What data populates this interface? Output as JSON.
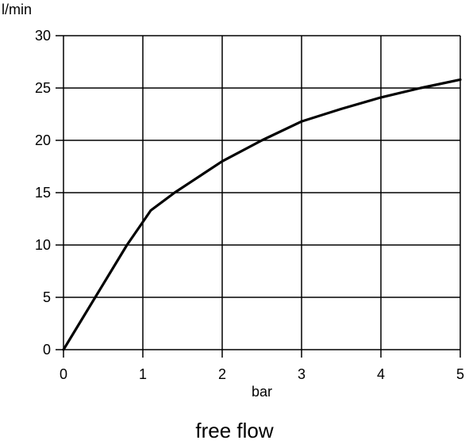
{
  "chart_data": {
    "type": "line",
    "title": "",
    "caption": "free flow",
    "xlabel": "bar",
    "ylabel": "l/min",
    "xlim": [
      0,
      5
    ],
    "ylim": [
      0,
      30
    ],
    "x_ticks": [
      0,
      1,
      2,
      3,
      4,
      5
    ],
    "y_ticks": [
      0,
      5,
      10,
      15,
      20,
      25,
      30
    ],
    "grid": true,
    "legend": "none",
    "series": [
      {
        "color": "#000000",
        "points": [
          [
            0,
            0
          ],
          [
            0.2,
            2.5
          ],
          [
            0.4,
            5
          ],
          [
            0.6,
            7.5
          ],
          [
            0.8,
            10
          ],
          [
            1.0,
            12.2
          ],
          [
            1.1,
            13.3
          ],
          [
            1.4,
            15
          ],
          [
            1.6,
            16
          ],
          [
            2.0,
            18
          ],
          [
            2.5,
            20
          ],
          [
            3.0,
            21.8
          ],
          [
            3.5,
            23
          ],
          [
            4.0,
            24.1
          ],
          [
            4.5,
            25
          ],
          [
            5.0,
            25.8
          ]
        ]
      }
    ]
  }
}
